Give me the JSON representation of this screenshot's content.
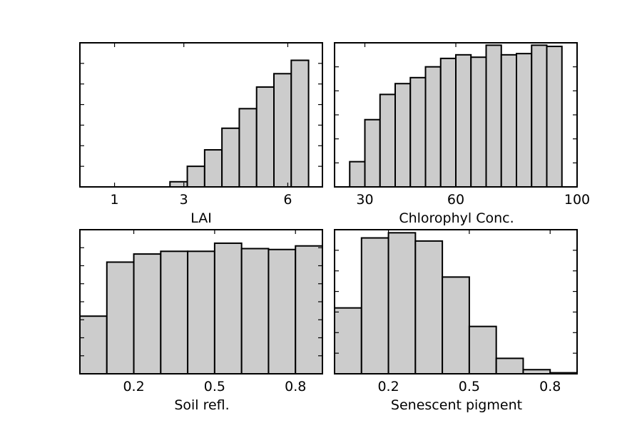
{
  "chart_data": [
    {
      "type": "bar",
      "xlabel": "LAI",
      "ylabel": "",
      "xlim": [
        0,
        7
      ],
      "ylim": [
        0,
        7.0
      ],
      "xticks": [
        1,
        3,
        6
      ],
      "xtick_labels": [
        "1",
        "3",
        "6"
      ],
      "yticks": [
        0,
        1,
        2,
        3,
        4,
        5,
        6
      ],
      "show_ytick_labels": false,
      "bins": [
        [
          2.6,
          3.1
        ],
        [
          3.1,
          3.6
        ],
        [
          3.6,
          4.1
        ],
        [
          4.1,
          4.6
        ],
        [
          4.6,
          5.1
        ],
        [
          5.1,
          5.6
        ],
        [
          5.6,
          6.1
        ],
        [
          6.1,
          6.6
        ]
      ],
      "values": [
        0.25,
        1.0,
        1.8,
        2.85,
        3.8,
        4.85,
        5.5,
        6.15
      ]
    },
    {
      "type": "bar",
      "xlabel": "Chlorophyl Conc.",
      "ylabel": "",
      "xlim": [
        20,
        100
      ],
      "ylim": [
        0,
        6.0
      ],
      "xticks": [
        30,
        60,
        100
      ],
      "xtick_labels": [
        "30",
        "60",
        "100"
      ],
      "yticks": [
        0,
        1,
        2,
        3,
        4,
        5
      ],
      "show_ytick_labels": false,
      "bins": [
        [
          25,
          30
        ],
        [
          30,
          35
        ],
        [
          35,
          40
        ],
        [
          40,
          45
        ],
        [
          45,
          50
        ],
        [
          50,
          55
        ],
        [
          55,
          60
        ],
        [
          60,
          65
        ],
        [
          65,
          70
        ],
        [
          70,
          75
        ],
        [
          75,
          80
        ],
        [
          80,
          85
        ],
        [
          85,
          90
        ],
        [
          90,
          95
        ]
      ],
      "values": [
        1.05,
        2.8,
        3.85,
        4.3,
        4.55,
        5.0,
        5.35,
        5.5,
        5.4,
        5.9,
        5.5,
        5.55,
        5.9,
        5.85
      ]
    },
    {
      "type": "bar",
      "xlabel": "Soil refl.",
      "ylabel": "",
      "xlim": [
        0.0,
        0.9
      ],
      "ylim": [
        0,
        8.0
      ],
      "xticks": [
        0.2,
        0.5,
        0.8
      ],
      "xtick_labels": [
        "0.2",
        "0.5",
        "0.8"
      ],
      "yticks": [
        0,
        1,
        2,
        3,
        4,
        5,
        6,
        7
      ],
      "show_ytick_labels": false,
      "bins": [
        [
          0.0,
          0.1
        ],
        [
          0.1,
          0.2
        ],
        [
          0.2,
          0.3
        ],
        [
          0.3,
          0.4
        ],
        [
          0.4,
          0.5
        ],
        [
          0.5,
          0.6
        ],
        [
          0.6,
          0.7
        ],
        [
          0.7,
          0.8
        ],
        [
          0.8,
          0.9
        ]
      ],
      "values": [
        3.2,
        6.2,
        6.65,
        6.8,
        6.8,
        7.25,
        6.95,
        6.9,
        7.1
      ]
    },
    {
      "type": "bar",
      "xlabel": "Senescent pigment",
      "ylabel": "",
      "xlim": [
        0.0,
        0.9
      ],
      "ylim": [
        0,
        7.0
      ],
      "xticks": [
        0.2,
        0.5,
        0.8
      ],
      "xtick_labels": [
        "0.2",
        "0.5",
        "0.8"
      ],
      "yticks": [
        0,
        1,
        2,
        3,
        4,
        5,
        6
      ],
      "show_ytick_labels": false,
      "bins": [
        [
          0.0,
          0.1
        ],
        [
          0.1,
          0.2
        ],
        [
          0.2,
          0.3
        ],
        [
          0.3,
          0.4
        ],
        [
          0.4,
          0.5
        ],
        [
          0.5,
          0.6
        ],
        [
          0.6,
          0.7
        ],
        [
          0.7,
          0.8
        ],
        [
          0.8,
          0.9
        ]
      ],
      "values": [
        3.2,
        6.6,
        6.85,
        6.45,
        4.7,
        2.3,
        0.75,
        0.2,
        0.05
      ]
    }
  ]
}
